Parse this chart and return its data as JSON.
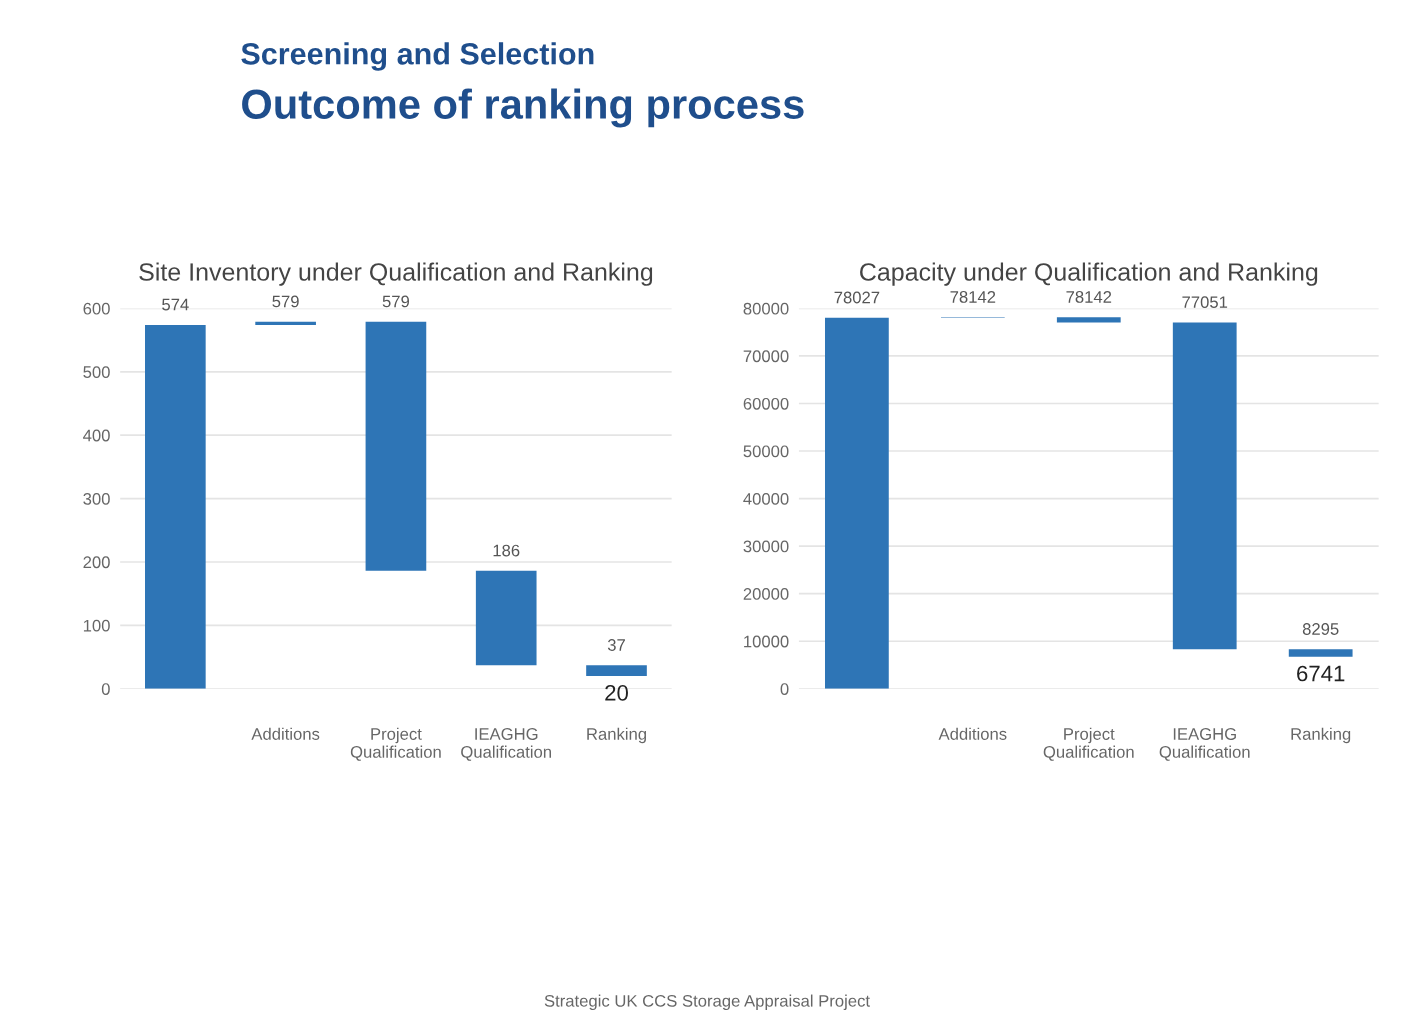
{
  "chart_data": [
    {
      "type": "bar",
      "title": "Site Inventory under Qualification and Ranking",
      "categories": [
        null,
        "Additions",
        "Project\nQualification",
        "IEAGHG\nQualification",
        "Ranking"
      ],
      "base": [
        0,
        574,
        186,
        37,
        20
      ],
      "values": [
        574,
        5,
        393,
        149,
        17
      ],
      "value_labels": [
        "574",
        "579",
        "579",
        "186",
        "37"
      ],
      "color": "#2e75b6",
      "ylim": [
        0,
        600
      ],
      "yticks": [
        0,
        100,
        200,
        300,
        400,
        500,
        600
      ],
      "grid": "y",
      "annotations": [
        "Screening and Selection",
        "Outcome of ranking process",
        {
          "text": "20",
          "x": "Ranking",
          "y": 20
        }
      ]
    },
    {
      "type": "bar",
      "title": "Capacity under Qualification and Ranking",
      "categories": [
        null,
        "Additions",
        "Project\nQualification",
        "IEAGHG\nQualification",
        "Ranking"
      ],
      "base": [
        0,
        78027,
        77051,
        8295,
        6741
      ],
      "values": [
        78027,
        115,
        1091,
        68756,
        1554
      ],
      "value_labels": [
        "78027",
        "78142",
        "78142",
        "77051",
        "8295"
      ],
      "color": "#2e75b6",
      "ylim": [
        0,
        80000
      ],
      "yticks": [
        0,
        10000,
        20000,
        30000,
        40000,
        50000,
        60000,
        70000,
        80000
      ],
      "grid": "y",
      "annotations": [
        {
          "text": "6741",
          "x": "Ranking",
          "y": 6741
        },
        "Strategic UK CCS Storage Appraisal Project"
      ]
    }
  ]
}
